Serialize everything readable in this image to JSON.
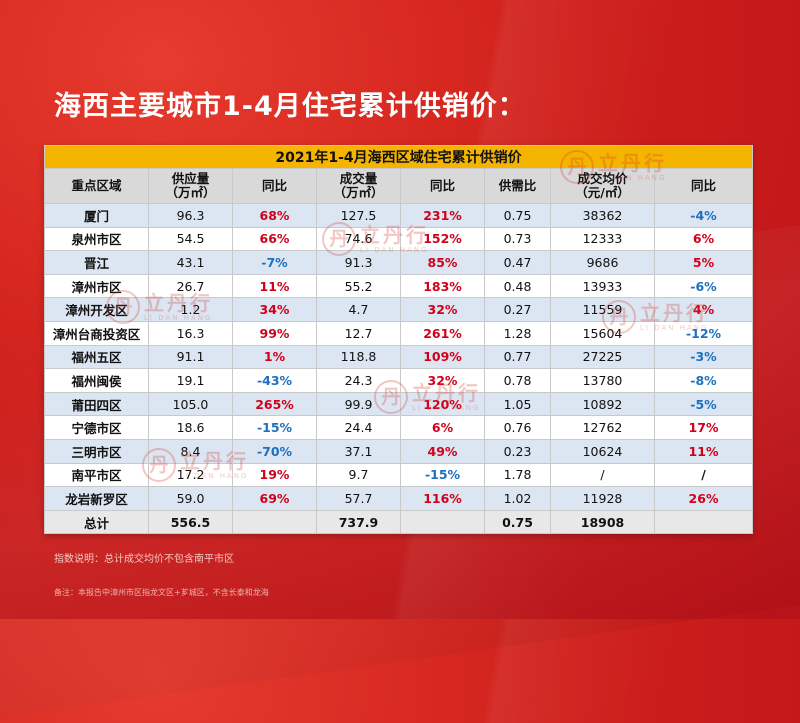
{
  "title": "海西主要城市1-4月住宅累计供销价：",
  "table": {
    "caption": "2021年1-4月海西区域住宅累计供销价",
    "headers": {
      "region": "重点区域",
      "supply_l1": "供应量",
      "supply_l2": "（万㎡）",
      "supply_yoy": "同比",
      "deal_l1": "成交量",
      "deal_l2": "（万㎡）",
      "deal_yoy": "同比",
      "ratio": "供需比",
      "price_l1": "成交均价",
      "price_l2": "（元/㎡）",
      "price_yoy": "同比"
    },
    "rows": [
      {
        "region": "厦门",
        "supply": "96.3",
        "supply_yoy": "68%",
        "deal": "127.5",
        "deal_yoy": "231%",
        "ratio": "0.75",
        "price": "38362",
        "price_yoy": "-4%"
      },
      {
        "region": "泉州市区",
        "supply": "54.5",
        "supply_yoy": "66%",
        "deal": "74.6",
        "deal_yoy": "152%",
        "ratio": "0.73",
        "price": "12333",
        "price_yoy": "6%"
      },
      {
        "region": "晋江",
        "supply": "43.1",
        "supply_yoy": "-7%",
        "deal": "91.3",
        "deal_yoy": "85%",
        "ratio": "0.47",
        "price": "9686",
        "price_yoy": "5%"
      },
      {
        "region": "漳州市区",
        "supply": "26.7",
        "supply_yoy": "11%",
        "deal": "55.2",
        "deal_yoy": "183%",
        "ratio": "0.48",
        "price": "13933",
        "price_yoy": "-6%"
      },
      {
        "region": "漳州开发区",
        "supply": "1.2",
        "supply_yoy": "34%",
        "deal": "4.7",
        "deal_yoy": "32%",
        "ratio": "0.27",
        "price": "11559",
        "price_yoy": "4%"
      },
      {
        "region": "漳州台商投资区",
        "supply": "16.3",
        "supply_yoy": "99%",
        "deal": "12.7",
        "deal_yoy": "261%",
        "ratio": "1.28",
        "price": "15604",
        "price_yoy": "-12%"
      },
      {
        "region": "福州五区",
        "supply": "91.1",
        "supply_yoy": "1%",
        "deal": "118.8",
        "deal_yoy": "109%",
        "ratio": "0.77",
        "price": "27225",
        "price_yoy": "-3%"
      },
      {
        "region": "福州闽侯",
        "supply": "19.1",
        "supply_yoy": "-43%",
        "deal": "24.3",
        "deal_yoy": "32%",
        "ratio": "0.78",
        "price": "13780",
        "price_yoy": "-8%"
      },
      {
        "region": "莆田四区",
        "supply": "105.0",
        "supply_yoy": "265%",
        "deal": "99.9",
        "deal_yoy": "120%",
        "ratio": "1.05",
        "price": "10892",
        "price_yoy": "-5%"
      },
      {
        "region": "宁德市区",
        "supply": "18.6",
        "supply_yoy": "-15%",
        "deal": "24.4",
        "deal_yoy": "6%",
        "ratio": "0.76",
        "price": "12762",
        "price_yoy": "17%"
      },
      {
        "region": "三明市区",
        "supply": "8.4",
        "supply_yoy": "-70%",
        "deal": "37.1",
        "deal_yoy": "49%",
        "ratio": "0.23",
        "price": "10624",
        "price_yoy": "11%"
      },
      {
        "region": "南平市区",
        "supply": "17.2",
        "supply_yoy": "19%",
        "deal": "9.7",
        "deal_yoy": "-15%",
        "ratio": "1.78",
        "price": "/",
        "price_yoy": "/"
      },
      {
        "region": "龙岩新罗区",
        "supply": "59.0",
        "supply_yoy": "69%",
        "deal": "57.7",
        "deal_yoy": "116%",
        "ratio": "1.02",
        "price": "11928",
        "price_yoy": "26%"
      }
    ],
    "total": {
      "region": "总计",
      "supply": "556.5",
      "supply_yoy": "",
      "deal": "737.9",
      "deal_yoy": "",
      "ratio": "0.75",
      "price": "18908",
      "price_yoy": ""
    }
  },
  "watermark": {
    "cn": "立丹行",
    "en": "LI DAN HANG",
    "seal": "丹"
  },
  "notes": {
    "note1": "指数说明：总计成交均价不包含南平市区",
    "note2": "备注：本报告中漳州市区指龙文区+芗城区，不含长泰和龙海"
  },
  "colors": {
    "background_red": "#cf1f1b",
    "caption_bar": "#f4b400",
    "header_gray": "#d9d9d9",
    "row_blue": "#dce6f2",
    "positive_red": "#d0021b",
    "negative_blue": "#1f6fc0"
  }
}
